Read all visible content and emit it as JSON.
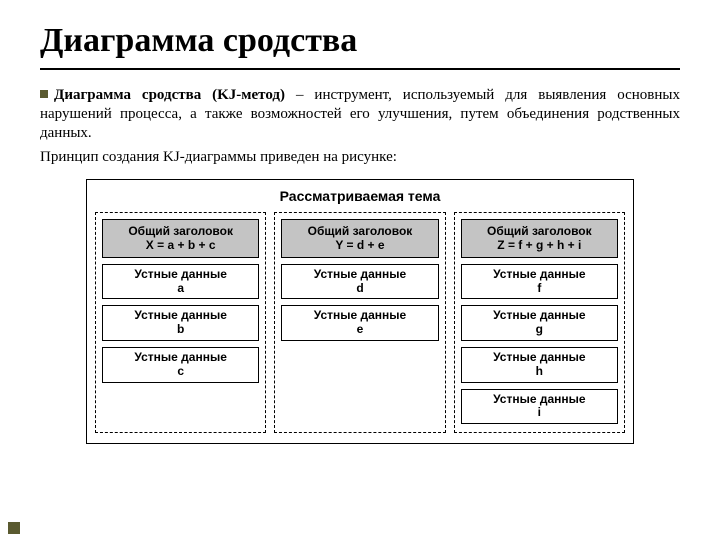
{
  "title": "Диаграмма сродства",
  "paragraph": {
    "bold_lead": "Диаграмма сродства (KJ-метод)",
    "rest": " – инструмент, используемый для выявления основных нарушений процесса, а также возможностей его улучшения, путем объединения родственных данных."
  },
  "paragraph2": "Принцип создания KJ-диаграммы приведен на рисунке:",
  "diagram": {
    "topic_title": "Рассматриваемая тема",
    "header_label": "Общий заголовок",
    "data_label": "Устные данные",
    "groups": [
      {
        "formula": "X = a + b + c",
        "items": [
          "a",
          "b",
          "c"
        ]
      },
      {
        "formula": "Y = d + e",
        "items": [
          "d",
          "e"
        ]
      },
      {
        "formula": "Z = f + g + h + i",
        "items": [
          "f",
          "g",
          "h",
          "i"
        ]
      }
    ],
    "colors": {
      "header_bg": "#c4c4c4",
      "box_border": "#000000",
      "dash_border": "#000000",
      "bullet": "#5a5a30"
    },
    "fonts": {
      "title_family": "Times New Roman",
      "title_size_pt": 26,
      "body_size_pt": 12,
      "diagram_family": "Arial",
      "diagram_topic_size_pt": 11,
      "diagram_box_size_pt": 9
    }
  }
}
